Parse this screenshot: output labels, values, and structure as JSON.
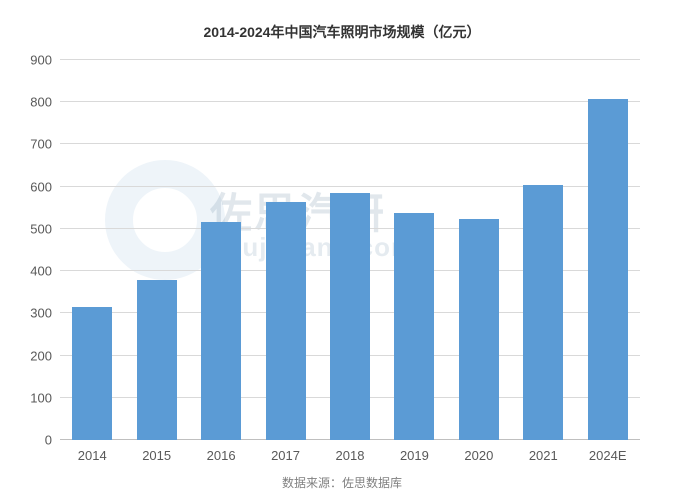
{
  "chart": {
    "type": "bar",
    "title": "2014-2024年中国汽车照明市场规模（亿元）",
    "title_fontsize": 14,
    "title_color": "#333333",
    "categories": [
      "2014",
      "2015",
      "2016",
      "2017",
      "2018",
      "2019",
      "2020",
      "2021",
      "2024E"
    ],
    "values": [
      316,
      380,
      516,
      564,
      584,
      538,
      524,
      604,
      808
    ],
    "bar_color": "#5b9bd5",
    "ylim": [
      0,
      900
    ],
    "ytick_step": 100,
    "yticks": [
      0,
      100,
      200,
      300,
      400,
      500,
      600,
      700,
      800,
      900
    ],
    "grid_color": "#d9d9d9",
    "axis_label_color": "#595959",
    "axis_label_fontsize": 13,
    "background_color": "#ffffff",
    "bar_width_ratio": 0.62
  },
  "watermark": {
    "main_text": "佐思汽研",
    "sub_text": "shujubang.com",
    "circle_color": "#a9c7e0",
    "text_color": "#8aa4b8",
    "opacity": 0.25
  },
  "source_note": {
    "text": "数据来源：佐思数据库",
    "color": "#808080",
    "fontsize": 12
  }
}
